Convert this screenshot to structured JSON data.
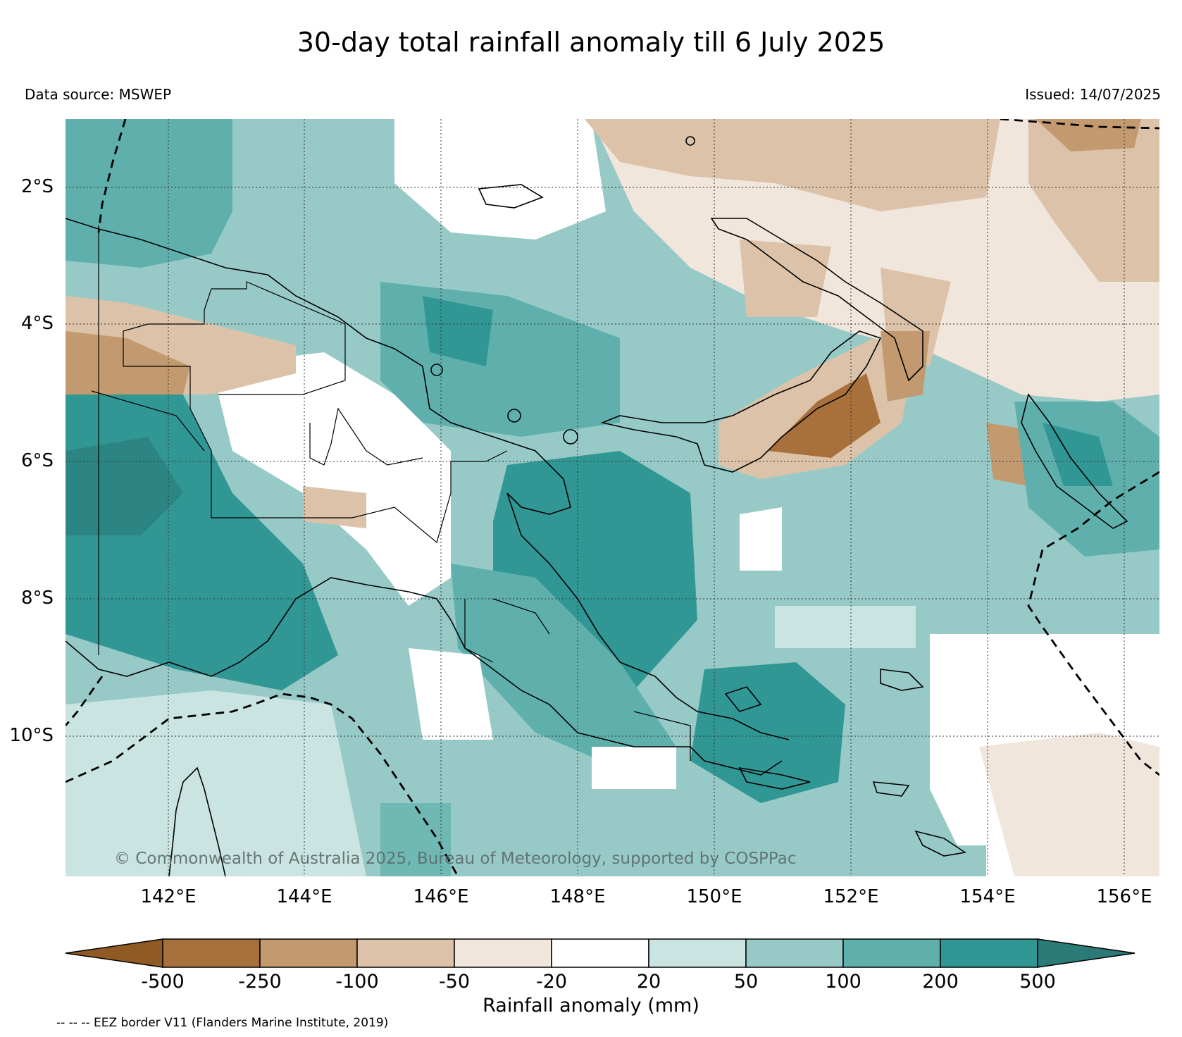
{
  "title": "30-day total rainfall anomaly till 6 July 2025",
  "data_source": "Data source: MSWEP",
  "issued": "Issued: 14/07/2025",
  "copyright": "© Commonwealth of Australia 2025, Bureau of Meteorology, supported by COSPPac",
  "eez_note": "-- -- -- EEZ border V11 (Flanders Marine Institute, 2019)",
  "latitude_labels": [
    "2°S",
    "4°S",
    "6°S",
    "8°S",
    "10°S"
  ],
  "longitude_labels": [
    "142°E",
    "144°E",
    "146°E",
    "148°E",
    "150°E",
    "152°E",
    "154°E",
    "156°E"
  ],
  "colorbar": {
    "label": "Rainfall anomaly (mm)",
    "ticks": [
      "-500",
      "-250",
      "-100",
      "-50",
      "-20",
      "20",
      "50",
      "100",
      "200",
      "500"
    ],
    "colors": [
      "#8f5a24",
      "#a8713b",
      "#c39a6f",
      "#dbc2a8",
      "#f0e6dc",
      "#ffffff",
      "#c9e4e1",
      "#97cac7",
      "#5fb0ad",
      "#319795",
      "#2b7a78"
    ]
  }
}
